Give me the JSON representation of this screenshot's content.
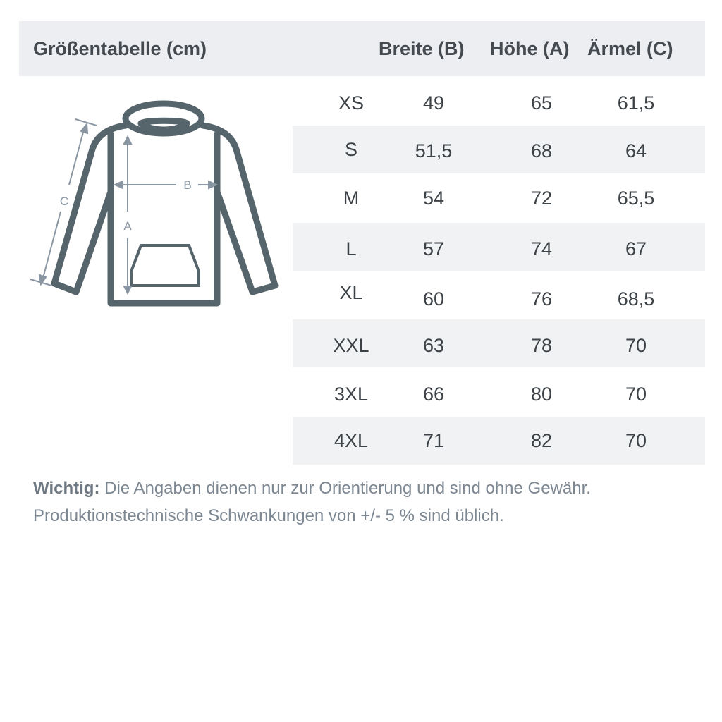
{
  "header": {
    "title": "Größentabelle (cm)",
    "col_b": "Breite (B)",
    "col_a": "Höhe (A)",
    "col_c": "Ärmel (C)"
  },
  "diagram": {
    "label_a": "A",
    "label_b": "B",
    "label_c": "C"
  },
  "rows": [
    {
      "size": "XS",
      "b": "49",
      "a": "65",
      "c": "61,5"
    },
    {
      "size": "S",
      "b": "51,5",
      "a": "68",
      "c": "64"
    },
    {
      "size": "M",
      "b": "54",
      "a": "72",
      "c": "65,5"
    },
    {
      "size": "L",
      "b": "57",
      "a": "74",
      "c": "67"
    },
    {
      "size": "XL",
      "b": "60",
      "a": "76",
      "c": "68,5"
    },
    {
      "size": "XXL",
      "b": "63",
      "a": "78",
      "c": "70"
    },
    {
      "size": "3XL",
      "b": "66",
      "a": "80",
      "c": "70"
    },
    {
      "size": "4XL",
      "b": "71",
      "a": "82",
      "c": "70"
    }
  ],
  "note": {
    "bold": "Wichtig:",
    "line1": " Die Angaben dienen nur zur Orientierung und sind ohne Gewähr.",
    "line2": "Produktionstechnische Schwankungen von +/- 5 % sind üblich."
  },
  "colors": {
    "outline": "#56646c",
    "measure": "#8a97a3",
    "header_bg": "#eceef1",
    "stripe_bg": "#f1f2f4"
  }
}
